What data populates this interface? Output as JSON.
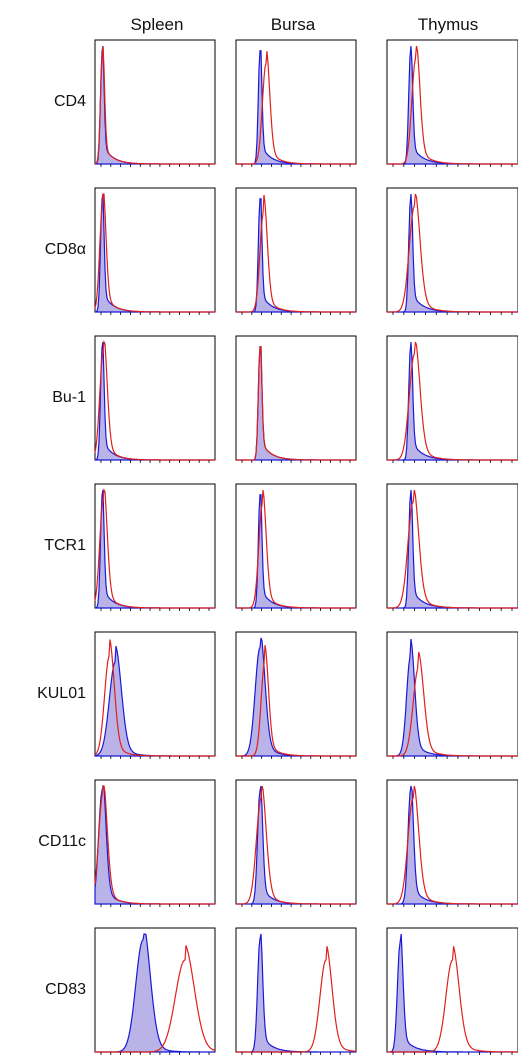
{
  "columns": [
    "Spleen",
    "Bursa",
    "Thymus"
  ],
  "rows": [
    "CD4",
    "CD8α",
    "Bu-1",
    "TCR1",
    "KUL01",
    "CD11c",
    "CD83"
  ],
  "colors": {
    "control_fill": "#b9b3e8",
    "control_line": "#1a1ad6",
    "marker_line": "#e0201c",
    "frame": "#000000"
  },
  "chart_data": {
    "type": "area",
    "description_kind": "flow cytometry histograms; shaded blue = control, red line = marker staining",
    "x_range": [
      0,
      1
    ],
    "y_range": [
      0,
      1
    ],
    "panels": [
      {
        "row": "CD4",
        "column": "Spleen",
        "control": {
          "peak": 0.06,
          "width": 0.014,
          "height": 0.96
        },
        "marker": {
          "peak": 0.062,
          "width": 0.016,
          "height": 0.93
        }
      },
      {
        "row": "CD4",
        "column": "Bursa",
        "control": {
          "peak": 0.2,
          "width": 0.014,
          "height": 0.96
        },
        "marker": {
          "peak": 0.25,
          "width": 0.03,
          "height": 0.85
        }
      },
      {
        "row": "CD4",
        "column": "Thymus",
        "control": {
          "peak": 0.18,
          "width": 0.014,
          "height": 0.96
        },
        "marker": {
          "peak": 0.22,
          "width": 0.03,
          "height": 0.9
        }
      },
      {
        "row": "CD8α",
        "column": "Spleen",
        "control": {
          "peak": 0.06,
          "width": 0.014,
          "height": 0.96
        },
        "marker": {
          "peak": 0.065,
          "width": 0.025,
          "height": 0.93
        }
      },
      {
        "row": "CD8α",
        "column": "Bursa",
        "control": {
          "peak": 0.2,
          "width": 0.014,
          "height": 0.96
        },
        "marker": {
          "peak": 0.23,
          "width": 0.03,
          "height": 0.85
        }
      },
      {
        "row": "CD8α",
        "column": "Thymus",
        "control": {
          "peak": 0.18,
          "width": 0.014,
          "height": 0.96
        },
        "marker": {
          "peak": 0.21,
          "width": 0.04,
          "height": 0.9
        }
      },
      {
        "row": "Bu-1",
        "column": "Spleen",
        "control": {
          "peak": 0.06,
          "width": 0.014,
          "height": 0.96
        },
        "marker": {
          "peak": 0.07,
          "width": 0.03,
          "height": 0.93
        }
      },
      {
        "row": "Bu-1",
        "column": "Bursa",
        "control": {
          "peak": 0.2,
          "width": 0.014,
          "height": 0.96
        },
        "marker": {
          "peak": 0.2,
          "width": 0.014,
          "height": 0.96
        }
      },
      {
        "row": "Bu-1",
        "column": "Thymus",
        "control": {
          "peak": 0.18,
          "width": 0.014,
          "height": 0.96
        },
        "marker": {
          "peak": 0.21,
          "width": 0.04,
          "height": 0.9
        }
      },
      {
        "row": "TCR1",
        "column": "Spleen",
        "control": {
          "peak": 0.06,
          "width": 0.014,
          "height": 0.96
        },
        "marker": {
          "peak": 0.07,
          "width": 0.03,
          "height": 0.93
        }
      },
      {
        "row": "TCR1",
        "column": "Bursa",
        "control": {
          "peak": 0.2,
          "width": 0.014,
          "height": 0.96
        },
        "marker": {
          "peak": 0.22,
          "width": 0.03,
          "height": 0.88
        }
      },
      {
        "row": "TCR1",
        "column": "Thymus",
        "control": {
          "peak": 0.18,
          "width": 0.014,
          "height": 0.96
        },
        "marker": {
          "peak": 0.2,
          "width": 0.04,
          "height": 0.9
        }
      },
      {
        "row": "KUL01",
        "column": "Spleen",
        "control": {
          "peak": 0.17,
          "width": 0.05,
          "height": 0.8
        },
        "marker": {
          "peak": 0.12,
          "width": 0.04,
          "height": 0.85
        }
      },
      {
        "row": "KUL01",
        "column": "Bursa",
        "control": {
          "peak": 0.2,
          "width": 0.04,
          "height": 0.92
        },
        "marker": {
          "peak": 0.24,
          "width": 0.03,
          "height": 0.8
        }
      },
      {
        "row": "KUL01",
        "column": "Thymus",
        "control": {
          "peak": 0.18,
          "width": 0.03,
          "height": 0.85
        },
        "marker": {
          "peak": 0.24,
          "width": 0.04,
          "height": 0.75
        }
      },
      {
        "row": "CD11c",
        "column": "Spleen",
        "control": {
          "peak": 0.06,
          "width": 0.03,
          "height": 0.96
        },
        "marker": {
          "peak": 0.065,
          "width": 0.035,
          "height": 0.93
        }
      },
      {
        "row": "CD11c",
        "column": "Bursa",
        "control": {
          "peak": 0.2,
          "width": 0.02,
          "height": 0.96
        },
        "marker": {
          "peak": 0.21,
          "width": 0.04,
          "height": 0.9
        }
      },
      {
        "row": "CD11c",
        "column": "Thymus",
        "control": {
          "peak": 0.18,
          "width": 0.02,
          "height": 0.96
        },
        "marker": {
          "peak": 0.2,
          "width": 0.04,
          "height": 0.9
        }
      },
      {
        "row": "CD83",
        "column": "Spleen",
        "control": {
          "peak": 0.4,
          "width": 0.06,
          "height": 0.95
        },
        "marker": {
          "peak": 0.75,
          "width": 0.08,
          "height": 0.78
        }
      },
      {
        "row": "CD83",
        "column": "Bursa",
        "control": {
          "peak": 0.2,
          "width": 0.02,
          "height": 0.96
        },
        "marker": {
          "peak": 0.75,
          "width": 0.05,
          "height": 0.78
        }
      },
      {
        "row": "CD83",
        "column": "Thymus",
        "control": {
          "peak": 0.1,
          "width": 0.02,
          "height": 0.93
        },
        "marker": {
          "peak": 0.5,
          "width": 0.05,
          "height": 0.78
        }
      }
    ]
  }
}
